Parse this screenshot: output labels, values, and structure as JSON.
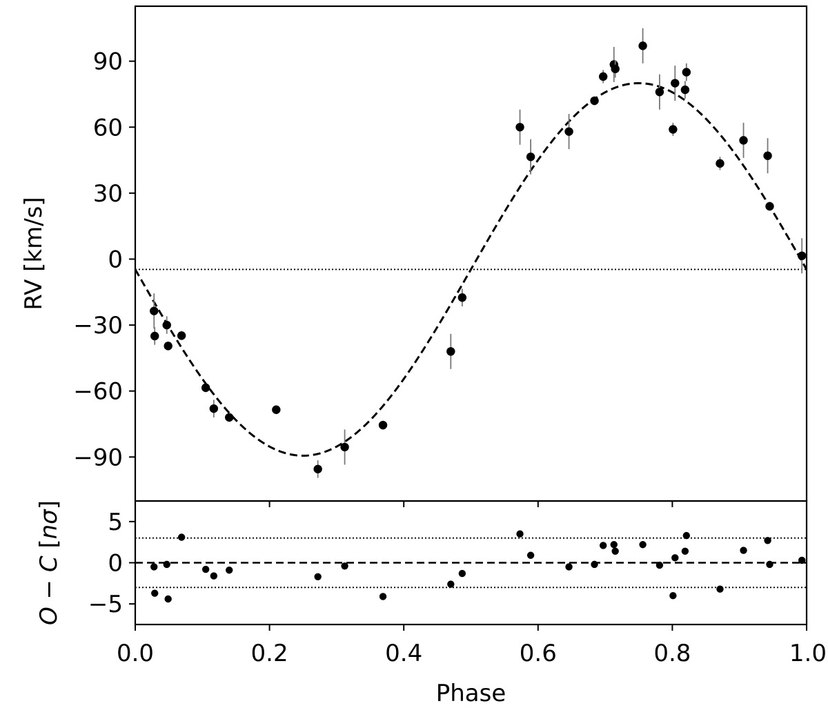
{
  "chart_data": [
    {
      "type": "scatter",
      "panel": "top",
      "xlabel": "",
      "ylabel": "RV [km/s]",
      "xlim": [
        0.0,
        1.0
      ],
      "ylim": [
        -110,
        115
      ],
      "yticks": [
        -90,
        -60,
        -30,
        0,
        30,
        60,
        90
      ],
      "ytick_labels": [
        "−90",
        "−60",
        "−30",
        "0",
        "30",
        "60",
        "90"
      ],
      "xticks": [
        0.0,
        0.2,
        0.4,
        0.6,
        0.8,
        1.0
      ],
      "model": {
        "kind": "sinusoid",
        "offset": -4.7,
        "amplitude": 84.7,
        "min_phase": 0.25,
        "style": "dashed"
      },
      "reference_line": {
        "y": -4.7,
        "style": "dotted"
      },
      "series": [
        {
          "points": [
            {
              "x": 0.028,
              "y": -23.6,
              "err": 8
            },
            {
              "x": 0.029,
              "y": -35.0,
              "err": 4
            },
            {
              "x": 0.047,
              "y": -30.0,
              "err": 4
            },
            {
              "x": 0.049,
              "y": -39.5,
              "err": 2
            },
            {
              "x": 0.069,
              "y": -34.8,
              "err": 2
            },
            {
              "x": 0.105,
              "y": -58.5,
              "err": 2
            },
            {
              "x": 0.117,
              "y": -68.0,
              "err": 4
            },
            {
              "x": 0.14,
              "y": -72.0,
              "err": 2
            },
            {
              "x": 0.21,
              "y": -68.5,
              "err": 2
            },
            {
              "x": 0.272,
              "y": -95.5,
              "err": 4
            },
            {
              "x": 0.312,
              "y": -85.5,
              "err": 8
            },
            {
              "x": 0.369,
              "y": -75.5,
              "err": 2
            },
            {
              "x": 0.47,
              "y": -42.0,
              "err": 8
            },
            {
              "x": 0.487,
              "y": -17.5,
              "err": 4
            },
            {
              "x": 0.573,
              "y": 60.0,
              "err": 8
            },
            {
              "x": 0.589,
              "y": 46.5,
              "err": 8
            },
            {
              "x": 0.646,
              "y": 58.0,
              "err": 8
            },
            {
              "x": 0.684,
              "y": 72.0,
              "err": 2
            },
            {
              "x": 0.697,
              "y": 83.0,
              "err": 3
            },
            {
              "x": 0.713,
              "y": 88.5,
              "err": 8
            },
            {
              "x": 0.715,
              "y": 86.5,
              "err": 4
            },
            {
              "x": 0.756,
              "y": 97.0,
              "err": 8
            },
            {
              "x": 0.781,
              "y": 76.0,
              "err": 8
            },
            {
              "x": 0.801,
              "y": 59.0,
              "err": 3
            },
            {
              "x": 0.804,
              "y": 80.0,
              "err": 8
            },
            {
              "x": 0.819,
              "y": 77.0,
              "err": 4
            },
            {
              "x": 0.821,
              "y": 85.0,
              "err": 4
            },
            {
              "x": 0.871,
              "y": 43.5,
              "err": 3
            },
            {
              "x": 0.906,
              "y": 54.0,
              "err": 8
            },
            {
              "x": 0.942,
              "y": 47.0,
              "err": 8
            },
            {
              "x": 0.945,
              "y": 24.0,
              "err": 2
            },
            {
              "x": 0.993,
              "y": 1.5,
              "err": 8
            }
          ]
        }
      ]
    },
    {
      "type": "scatter",
      "panel": "bottom",
      "xlabel": "Phase",
      "ylabel": "O − C [nσ]",
      "xlim": [
        0.0,
        1.0
      ],
      "ylim": [
        -7.5,
        7.5
      ],
      "yticks": [
        -5,
        0,
        5
      ],
      "ytick_labels": [
        "−5",
        "0",
        "5"
      ],
      "xticks": [
        0.0,
        0.2,
        0.4,
        0.6,
        0.8,
        1.0
      ],
      "xtick_labels": [
        "0.0",
        "0.2",
        "0.4",
        "0.6",
        "0.8",
        "1.0"
      ],
      "zero_line": {
        "y": 0,
        "style": "dashed"
      },
      "threshold_lines": [
        {
          "y": 3,
          "style": "dotted"
        },
        {
          "y": -3,
          "style": "dotted"
        }
      ],
      "series": [
        {
          "points": [
            {
              "x": 0.028,
              "y": -0.5
            },
            {
              "x": 0.029,
              "y": -3.7
            },
            {
              "x": 0.047,
              "y": -0.2
            },
            {
              "x": 0.049,
              "y": -4.4
            },
            {
              "x": 0.069,
              "y": 3.1
            },
            {
              "x": 0.105,
              "y": -0.8
            },
            {
              "x": 0.117,
              "y": -1.6
            },
            {
              "x": 0.14,
              "y": -0.9
            },
            {
              "x": 0.272,
              "y": -1.7
            },
            {
              "x": 0.312,
              "y": -0.4
            },
            {
              "x": 0.369,
              "y": -4.1
            },
            {
              "x": 0.47,
              "y": -2.6
            },
            {
              "x": 0.487,
              "y": -1.3
            },
            {
              "x": 0.573,
              "y": 3.5
            },
            {
              "x": 0.589,
              "y": 0.9
            },
            {
              "x": 0.646,
              "y": -0.5
            },
            {
              "x": 0.684,
              "y": -0.2
            },
            {
              "x": 0.697,
              "y": 2.1
            },
            {
              "x": 0.713,
              "y": 2.2
            },
            {
              "x": 0.715,
              "y": 1.4
            },
            {
              "x": 0.756,
              "y": 2.2
            },
            {
              "x": 0.781,
              "y": -0.3
            },
            {
              "x": 0.801,
              "y": -4.0
            },
            {
              "x": 0.804,
              "y": 0.6
            },
            {
              "x": 0.819,
              "y": 1.4
            },
            {
              "x": 0.821,
              "y": 3.3
            },
            {
              "x": 0.871,
              "y": -3.2
            },
            {
              "x": 0.906,
              "y": 1.5
            },
            {
              "x": 0.942,
              "y": 2.7
            },
            {
              "x": 0.945,
              "y": -0.2
            },
            {
              "x": 0.993,
              "y": 0.3
            }
          ]
        }
      ]
    }
  ]
}
